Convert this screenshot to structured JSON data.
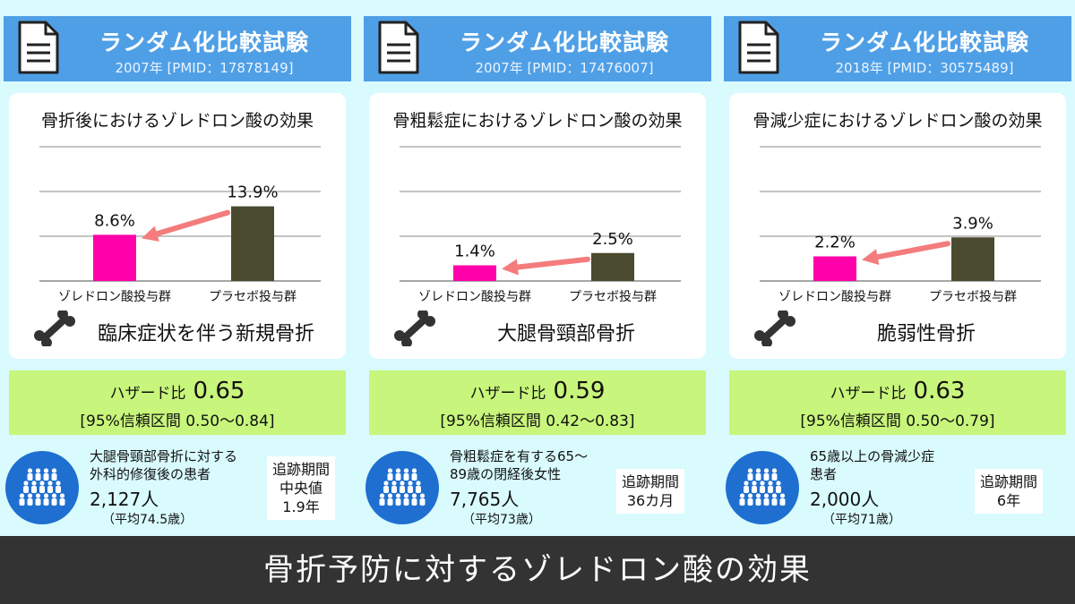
{
  "colors": {
    "background": "#d9fbfd",
    "header": "#4f9fe6",
    "zoledronic_bar": "#ff00aa",
    "placebo_bar": "#4a4a2e",
    "arrow": "#f47c7c",
    "hazard_box": "#c8f57b",
    "people_circle": "#1e6fd0",
    "footer": "#333333"
  },
  "icons": {
    "document": "document-icon",
    "bone": "bone-icon",
    "people": "people-group-icon"
  },
  "panels": [
    {
      "header_title": "ランダム化比較試験",
      "header_sub": "2007年 [PMID：17878149]",
      "chart_title": "骨折後におけるゾレドロン酸の効果",
      "endpoint": "臨床症状を伴う新規骨折",
      "hazard_label": "ハザード比",
      "hazard_value": "0.65",
      "ci": "[95%信頼区間 0.50〜0.84]",
      "pop_desc_1": "大腿骨頸部骨折に対する",
      "pop_desc_2": "外科的修復後の患者",
      "pop_n": "2,127人",
      "pop_age": "（平均74.5歳）",
      "followup": "追跡期間\n中央値\n1.9年"
    },
    {
      "header_title": "ランダム化比較試験",
      "header_sub": "2007年 [PMID：17476007]",
      "chart_title": "骨粗鬆症におけるゾレドロン酸の効果",
      "endpoint": "大腿骨頸部骨折",
      "hazard_label": "ハザード比",
      "hazard_value": "0.59",
      "ci": "[95%信頼区間 0.42〜0.83]",
      "pop_desc_1": "骨粗鬆症を有する65〜",
      "pop_desc_2": "89歳の閉経後女性",
      "pop_n": "7,765人",
      "pop_age": "（平均73歳）",
      "followup": "追跡期間\n36カ月"
    },
    {
      "header_title": "ランダム化比較試験",
      "header_sub": "2018年 [PMID：30575489]",
      "chart_title": "骨減少症におけるゾレドロン酸の効果",
      "endpoint": "脆弱性骨折",
      "hazard_label": "ハザード比",
      "hazard_value": "0.63",
      "ci": "[95%信頼区間 0.50〜0.79]",
      "pop_desc_1": "65歳以上の骨減少症",
      "pop_desc_2": "患者",
      "pop_n": "2,000人",
      "pop_age": "（平均71歳）",
      "followup": "追跡期間\n6年"
    }
  ],
  "chart_data": [
    {
      "type": "bar",
      "title": "骨折後におけるゾレドロン酸の効果",
      "categories": [
        "ゾレドロン酸投与群",
        "プラセボ投与群"
      ],
      "values": [
        8.6,
        13.9
      ],
      "value_labels": [
        "8.6%",
        "13.9%"
      ],
      "ylim": [
        0,
        25
      ],
      "grid": true
    },
    {
      "type": "bar",
      "title": "骨粗鬆症におけるゾレドロン酸の効果",
      "categories": [
        "ゾレドロン酸投与群",
        "プラセボ投与群"
      ],
      "values": [
        1.4,
        2.5
      ],
      "value_labels": [
        "1.4%",
        "2.5%"
      ],
      "ylim": [
        0,
        12
      ],
      "grid": true
    },
    {
      "type": "bar",
      "title": "骨減少症におけるゾレドロン酸の効果",
      "categories": [
        "ゾレドロン酸投与群",
        "プラセボ投与群"
      ],
      "values": [
        2.2,
        3.9
      ],
      "value_labels": [
        "2.2%",
        "3.9%"
      ],
      "ylim": [
        0,
        12
      ],
      "grid": true
    }
  ],
  "footer": {
    "title": "骨折予防に対するゾレドロン酸の効果"
  }
}
